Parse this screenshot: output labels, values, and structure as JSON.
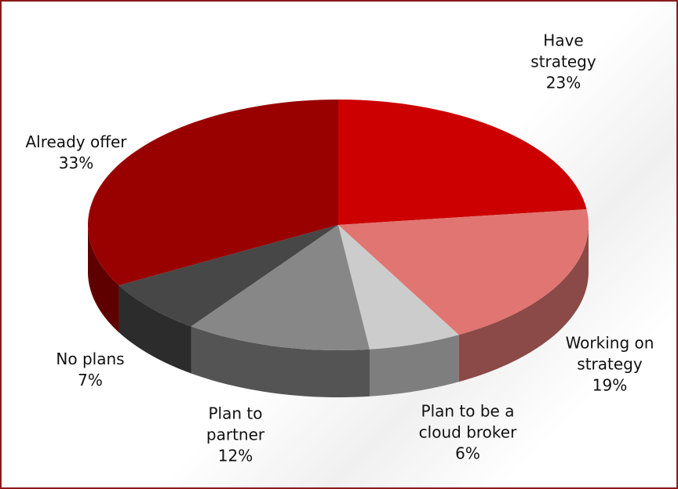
{
  "chart_data": {
    "type": "pie3d",
    "categories": [
      "Have strategy",
      "Working on strategy",
      "Plan to be a cloud broker",
      "Plan to partner",
      "No plans",
      "Already offer"
    ],
    "values": [
      23,
      19,
      6,
      12,
      7,
      33
    ],
    "value_labels": [
      "23%",
      "19%",
      "6%",
      "12%",
      "7%",
      "33%"
    ],
    "colors": [
      "#cc0000",
      "#e07572",
      "#cccccc",
      "#878787",
      "#474747",
      "#990000"
    ]
  }
}
